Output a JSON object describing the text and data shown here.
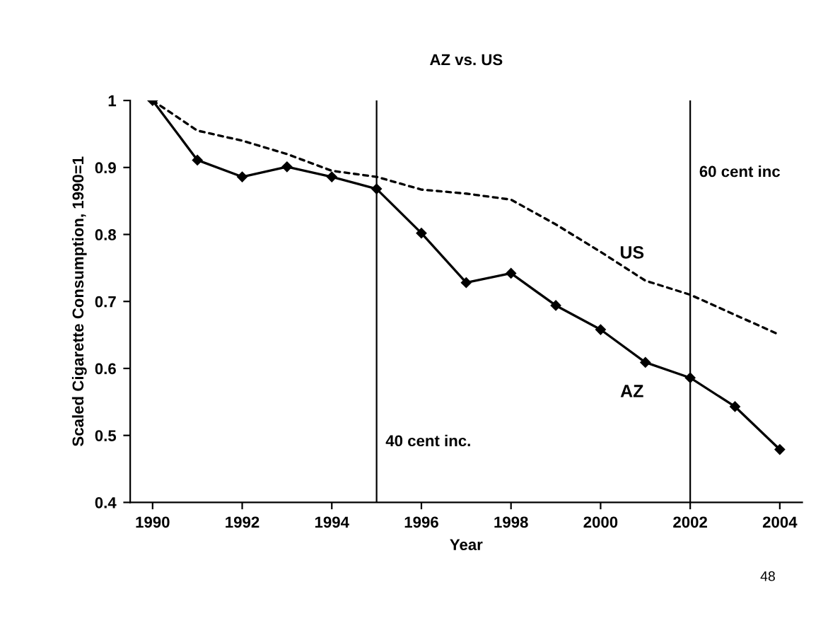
{
  "chart_data": {
    "type": "line",
    "title": "AZ vs. US",
    "xlabel": "Year",
    "ylabel": "Scaled Cigarette Consumption, 1990=1",
    "x": [
      1990,
      1991,
      1992,
      1993,
      1994,
      1995,
      1996,
      1997,
      1998,
      1999,
      2000,
      2001,
      2002,
      2003,
      2004
    ],
    "series": [
      {
        "name": "AZ",
        "color": "#000000",
        "marker": "diamond",
        "line_style": "solid",
        "values": [
          1.0,
          0.911,
          0.886,
          0.901,
          0.886,
          0.868,
          0.802,
          0.728,
          0.742,
          0.694,
          0.658,
          0.609,
          0.586,
          0.543,
          0.479
        ]
      },
      {
        "name": "US",
        "color": "#000000",
        "marker": "none",
        "line_style": "dashed",
        "values": [
          1.0,
          0.955,
          0.94,
          0.92,
          0.895,
          0.886,
          0.867,
          0.861,
          0.852,
          0.815,
          0.774,
          0.731,
          0.71,
          0.68,
          0.65
        ]
      }
    ],
    "xlim": [
      1989.5,
      2004.5
    ],
    "xticks": [
      1990,
      1992,
      1994,
      1996,
      1998,
      2000,
      2002,
      2004
    ],
    "ylim": [
      0.4,
      1.0
    ],
    "yticks": [
      0.4,
      0.5,
      0.6,
      0.7,
      0.8,
      0.9,
      1
    ],
    "ref_lines": [
      {
        "axis": "x",
        "value": 1995,
        "label": "40 cent inc."
      },
      {
        "axis": "x",
        "value": 2002,
        "label": "60 cent inc"
      }
    ],
    "annotations": [
      "48"
    ],
    "grid": false,
    "legend": false
  }
}
